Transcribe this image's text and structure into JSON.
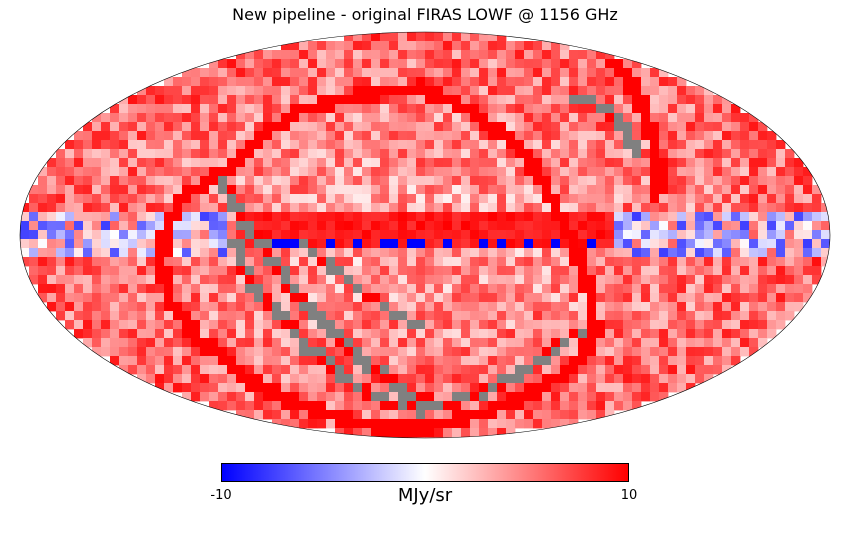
{
  "chart_data": {
    "type": "heatmap",
    "projection": "mollweide",
    "title": "New pipeline - original FIRAS LOWF @ 1156 GHz",
    "colormap": {
      "name": "bwr",
      "low": "#0000ff",
      "mid": "#ffffff",
      "high": "#ff0000",
      "bad": "#808080"
    },
    "colorbar": {
      "min": -10,
      "max": 10,
      "min_label": "-10",
      "max_label": "10",
      "unit": "MJy/sr"
    },
    "features": {
      "typical_sky_value": 3.5,
      "galactic_plane_value": 10,
      "galactic_plane_negative_dip": -10,
      "ecliptic_band_value": 10,
      "masked_band": "grey stripes of missing data along the scan boundaries"
    }
  }
}
